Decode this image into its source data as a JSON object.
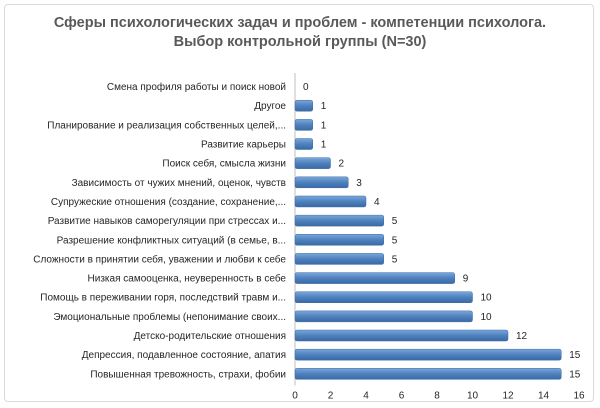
{
  "chart_data": {
    "type": "bar",
    "orientation": "horizontal",
    "title_line1": "Сферы психологических задач и проблем - компетенции психолога.",
    "title_line2": "Выбор контрольной группы (N=30)",
    "categories": [
      "Смена профиля работы и поиск новой",
      "Другое",
      "Планирование и реализация собственных целей,...",
      "Развитие карьеры",
      "Поиск себя, смысла жизни",
      "Зависимость от чужих мнений, оценок, чувств",
      "Супружеские отношения (создание, сохранение,...",
      "Развитие навыков саморегуляции при стрессах и...",
      "Разрешение конфликтных ситуаций (в семье, в...",
      "Сложности в принятии себя, уважении и любви к себе",
      "Низкая самооценка, неуверенность в себе",
      "Помощь в переживании горя, последствий травм и...",
      "Эмоциональные проблемы (непонимание своих...",
      "Детско-родительские отношения",
      "Депрессия, подавленное состояние, апатия",
      "Повышенная тревожность, страхи, фобии"
    ],
    "values": [
      0,
      1,
      1,
      1,
      2,
      3,
      4,
      5,
      5,
      5,
      9,
      10,
      10,
      12,
      15,
      15
    ],
    "xlim": [
      0,
      16
    ],
    "xticks": [
      "0",
      "2",
      "4",
      "6",
      "8",
      "10",
      "12",
      "14",
      "16"
    ],
    "grid": false,
    "data_labels": true,
    "bar_color": "#4f81bd"
  }
}
